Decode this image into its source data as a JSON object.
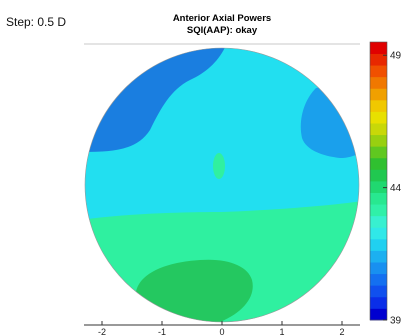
{
  "header": {
    "step_label": "Step: 0.5 D"
  },
  "chart_data": {
    "type": "heatmap",
    "title": "Anterior Axial Powers",
    "subtitle": "SQI(AAP): okay",
    "xlabel": "",
    "ylabel": "",
    "x_ticks": [
      "-2",
      "-1",
      "0",
      "1",
      "2"
    ],
    "x_tick_values": [
      -2,
      -1,
      0,
      1,
      2
    ],
    "xlim": [
      -2.3,
      2.3
    ],
    "grid": false,
    "colorbar": {
      "min": 39,
      "max": 49.5,
      "step": 0.5,
      "tick_labels": [
        "49",
        "44",
        "39"
      ],
      "tick_values": [
        49,
        44,
        39
      ],
      "colors": [
        "#0000d0",
        "#0a2ee8",
        "#1050ee",
        "#1470f0",
        "#1890f0",
        "#1cb0f0",
        "#20d0f0",
        "#30e8e8",
        "#38f0d0",
        "#30f0a8",
        "#28e890",
        "#20d870",
        "#20c850",
        "#30c030",
        "#60c820",
        "#98d010",
        "#c8d808",
        "#e8e000",
        "#f0c800",
        "#f0a000",
        "#f07800",
        "#f05000",
        "#e82800",
        "#e00000"
      ]
    },
    "regions": [
      {
        "name": "upper-left-blue",
        "power_d": 41.5,
        "color": "#1a7ee0"
      },
      {
        "name": "upper-right-blue",
        "power_d": 42.0,
        "color": "#1aa0ec"
      },
      {
        "name": "central-cyan",
        "power_d": 43.0,
        "color": "#22dff0"
      },
      {
        "name": "central-island",
        "power_d": 44.0,
        "color": "#30f0a0"
      },
      {
        "name": "lower-aqua",
        "power_d": 44.0,
        "color": "#2ff0a0"
      },
      {
        "name": "bottom-green",
        "power_d": 45.0,
        "color": "#24c860"
      }
    ]
  }
}
